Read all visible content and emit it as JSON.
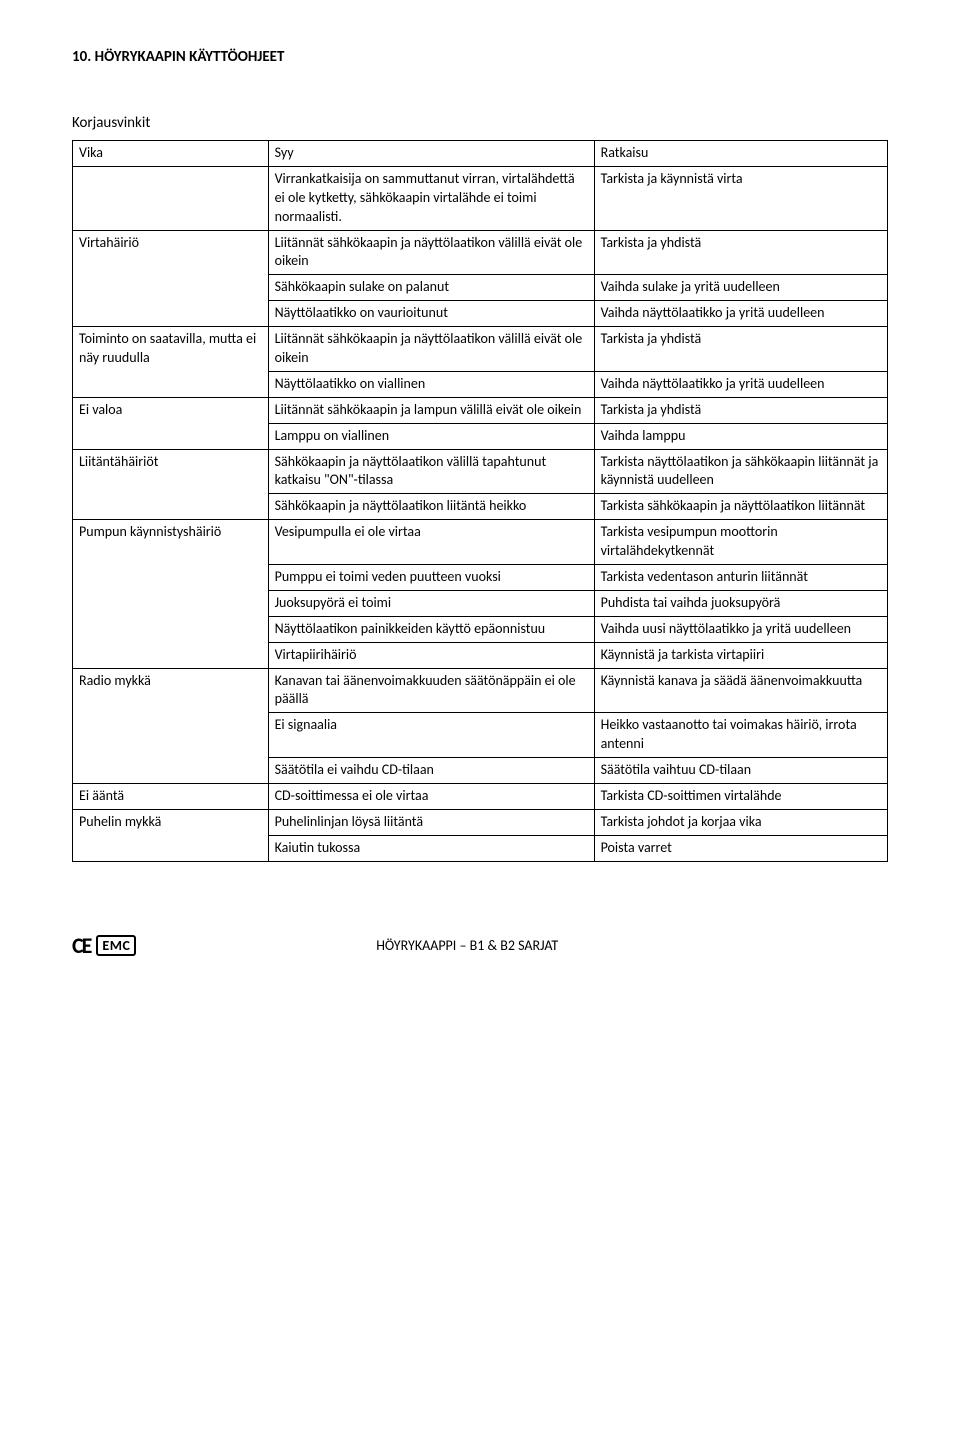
{
  "heading": "10. HÖYRYKAAPIN KÄYTTÖOHJEET",
  "subheading": "Korjausvinkit",
  "header": {
    "c1": "Vika",
    "c2": "Syy",
    "c3": "Ratkaisu"
  },
  "rows": [
    {
      "c1": "",
      "c2": "Virrankatkaisija on sammuttanut virran, virtalähdettä ei ole kytketty, sähkökaapin virtalähde ei toimi normaalisti.",
      "c3": "Tarkista ja käynnistä virta",
      "r1": 1
    },
    {
      "c1": "Virtahäiriö",
      "c2": "Liitännät sähkökaapin ja näyttölaatikon välillä eivät ole oikein",
      "c3": "Tarkista ja yhdistä",
      "r1": 3
    },
    {
      "c2": "Sähkökaapin sulake on palanut",
      "c3": "Vaihda sulake ja yritä uudelleen"
    },
    {
      "c2": "Näyttölaatikko on vaurioitunut",
      "c3": "Vaihda näyttölaatikko ja yritä uudelleen"
    },
    {
      "c1": "Toiminto on saatavilla, mutta ei näy ruudulla",
      "c2": "Liitännät sähkökaapin ja näyttölaatikon välillä eivät ole oikein",
      "c3": "Tarkista ja yhdistä",
      "r1": 2
    },
    {
      "c2": "Näyttölaatikko on viallinen",
      "c3": "Vaihda näyttölaatikko ja yritä uudelleen"
    },
    {
      "c1": "Ei valoa",
      "c2": "Liitännät sähkökaapin ja lampun välillä eivät ole oikein",
      "c3": "Tarkista ja yhdistä",
      "r1": 2
    },
    {
      "c2": "Lamppu on viallinen",
      "c3": "Vaihda lamppu"
    },
    {
      "c1": "Liitäntähäiriöt",
      "c2": "Sähkökaapin ja näyttölaatikon välillä tapahtunut katkaisu \"ON\"-tilassa",
      "c3": "Tarkista näyttölaatikon ja sähkökaapin liitännät ja käynnistä uudelleen",
      "r1": 2
    },
    {
      "c2": "Sähkökaapin ja näyttölaatikon liitäntä heikko",
      "c3": "Tarkista sähkökaapin ja näyttölaatikon liitännät"
    },
    {
      "c1": "Pumpun käynnistyshäiriö",
      "c2": "Vesipumpulla ei ole virtaa",
      "c3": "Tarkista vesipumpun moottorin virtalähdekytkennät",
      "r1": 5
    },
    {
      "c2": "Pumppu ei toimi veden puutteen vuoksi",
      "c3": "Tarkista vedentason anturin liitännät"
    },
    {
      "c2": "Juoksupyörä ei toimi",
      "c3": "Puhdista tai vaihda juoksupyörä"
    },
    {
      "c2": "Näyttölaatikon painikkeiden käyttö epäonnistuu",
      "c3": "Vaihda uusi näyttölaatikko ja yritä uudelleen"
    },
    {
      "c2": "Virtapiirihäiriö",
      "c3": "Käynnistä ja tarkista virtapiiri"
    },
    {
      "c1": "Radio mykkä",
      "c2": "Kanavan tai äänenvoimakkuuden säätönäppäin ei ole päällä",
      "c3": "Käynnistä kanava ja säädä äänenvoimakkuutta",
      "r1": 3
    },
    {
      "c2": "Ei signaalia",
      "c3": "Heikko vastaanotto tai voimakas häiriö, irrota antenni"
    },
    {
      "c2": "Säätötila ei vaihdu CD-tilaan",
      "c3": "Säätötila vaihtuu CD-tilaan"
    },
    {
      "c1": "Ei ääntä",
      "c2": "CD-soittimessa ei ole virtaa",
      "c3": "Tarkista CD-soittimen virtalähde",
      "r1": 1
    },
    {
      "c1": "Puhelin mykkä",
      "c2": "Puhelinlinjan löysä liitäntä",
      "c3": "Tarkista johdot ja korjaa vika",
      "r1": 2
    },
    {
      "c2": "Kaiutin tukossa",
      "c3": "Poista varret"
    }
  ],
  "footer": {
    "ce": "CE",
    "emc": "EMC",
    "center": "HÖYRYKAAPPI – B1 & B2 SARJAT"
  }
}
